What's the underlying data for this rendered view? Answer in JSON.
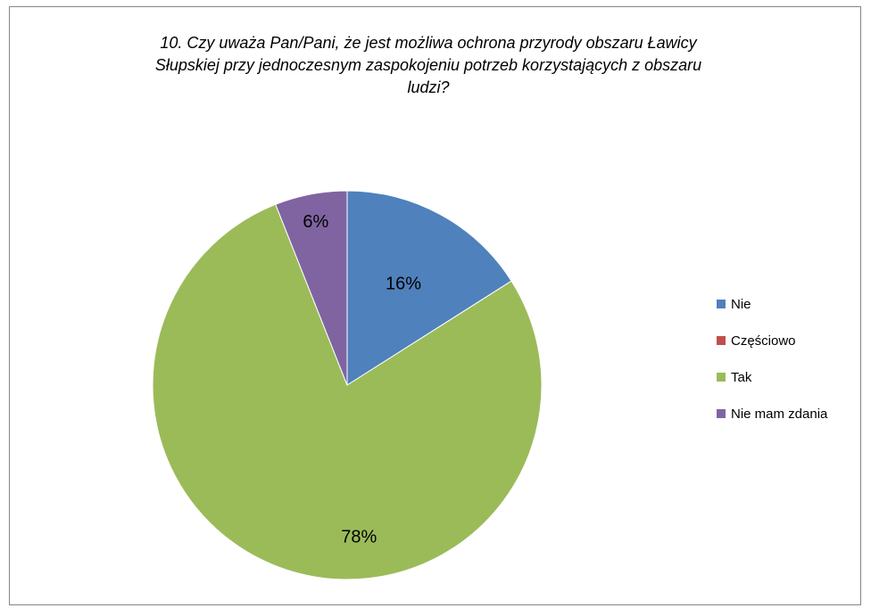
{
  "chart_data": {
    "type": "pie",
    "title_lines": [
      "10. Czy uważa Pan/Pani, że jest możliwa ochrona przyrody obszaru Ławicy",
      "Słupskiej przy jednoczesnym zaspokojeniu potrzeb korzystających z obszaru",
      "ludzi?"
    ],
    "categories": [
      "Nie",
      "Częściowo",
      "Tak",
      "Nie mam zdania"
    ],
    "values": [
      16,
      0,
      78,
      6
    ],
    "labels": [
      "16%",
      "",
      "78%",
      "6%"
    ],
    "colors": [
      "#4F81BD",
      "#C0504D",
      "#9BBB59",
      "#8064A2"
    ],
    "legend_position": "right"
  }
}
